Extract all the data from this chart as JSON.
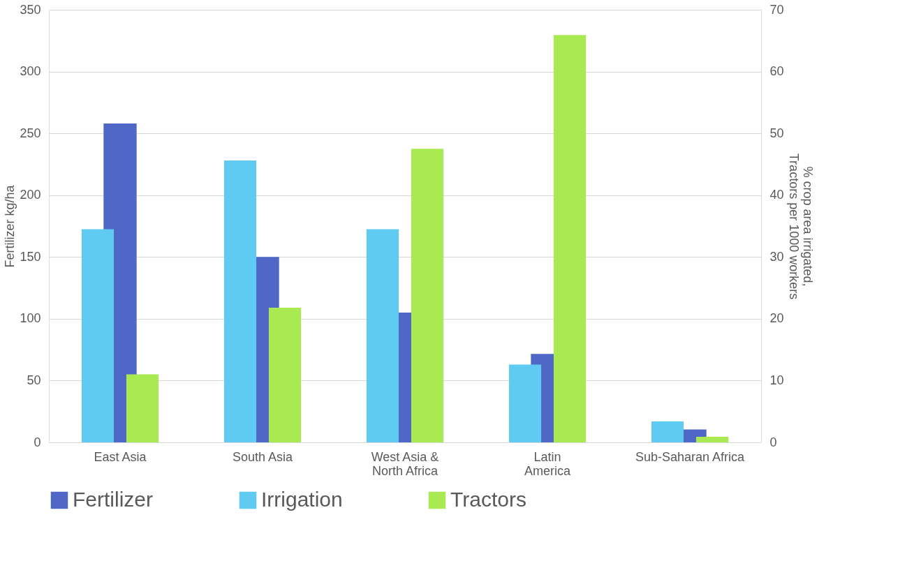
{
  "chart_data": {
    "type": "bar",
    "categories": [
      "East Asia",
      "South Asia",
      "West Asia &\nNorth Africa",
      "Latin\nAmerica",
      "Sub-Saharan Africa"
    ],
    "series": [
      {
        "name": "Fertilizer",
        "color": "#4f68c8",
        "values": [
          258,
          150,
          105,
          71.5,
          10.5
        ]
      },
      {
        "name": "Irrigation",
        "color": "#5fcbf2",
        "axis": "y2",
        "values": [
          34.5,
          45.6,
          34.5,
          12.6,
          3.4
        ]
      },
      {
        "name": "Tractors",
        "color": "#a9ea52",
        "axis": "y2",
        "values": [
          11.0,
          21.8,
          47.5,
          65.9,
          0.9
        ]
      }
    ],
    "ylabel": "Fertilizer kg/ha",
    "y2label": "% crop area irrigated,\nTractors per 1000 workers",
    "ylim": [
      0,
      350
    ],
    "yticks": [
      0,
      50,
      100,
      150,
      200,
      250,
      300,
      350
    ],
    "y2lim": [
      0,
      70
    ],
    "y2ticks": [
      0,
      10,
      20,
      30,
      40,
      50,
      60,
      70
    ],
    "grid": "y",
    "legend": "bottom"
  }
}
